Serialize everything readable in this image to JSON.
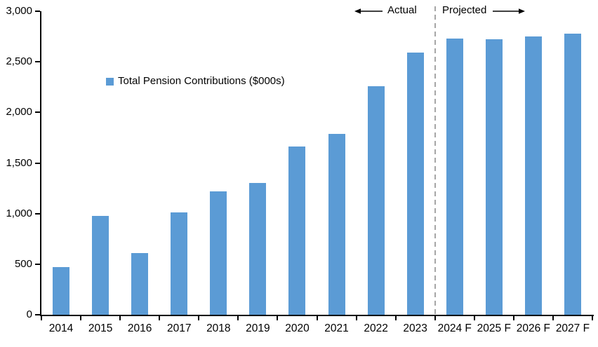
{
  "chart_data": {
    "type": "bar",
    "title": "",
    "xlabel": "",
    "ylabel": "",
    "categories": [
      "2014",
      "2015",
      "2016",
      "2017",
      "2018",
      "2019",
      "2020",
      "2021",
      "2022",
      "2023",
      "2024 F",
      "2025 F",
      "2026 F",
      "2027 F"
    ],
    "values": [
      470,
      980,
      610,
      1010,
      1220,
      1300,
      1660,
      1790,
      2260,
      2590,
      2730,
      2720,
      2750,
      2780
    ],
    "ylim": [
      0,
      3000
    ],
    "yticks": [
      0,
      500,
      1000,
      1500,
      2000,
      2500,
      3000
    ],
    "ytick_labels": [
      "0",
      "500",
      "1,000",
      "1,500",
      "2,000",
      "2,500",
      "3,000"
    ],
    "grid": false,
    "bar_color": "#5B9BD5",
    "axis_color": "#000000",
    "legend": {
      "label": "Total Pension Contributions ($000s)",
      "position": "inside-upper-left"
    },
    "divider": {
      "after_category": "2023",
      "style": "dashed",
      "color": "#A6A6A6"
    },
    "annotations": {
      "left_label": "Actual",
      "right_label": "Projected"
    }
  }
}
